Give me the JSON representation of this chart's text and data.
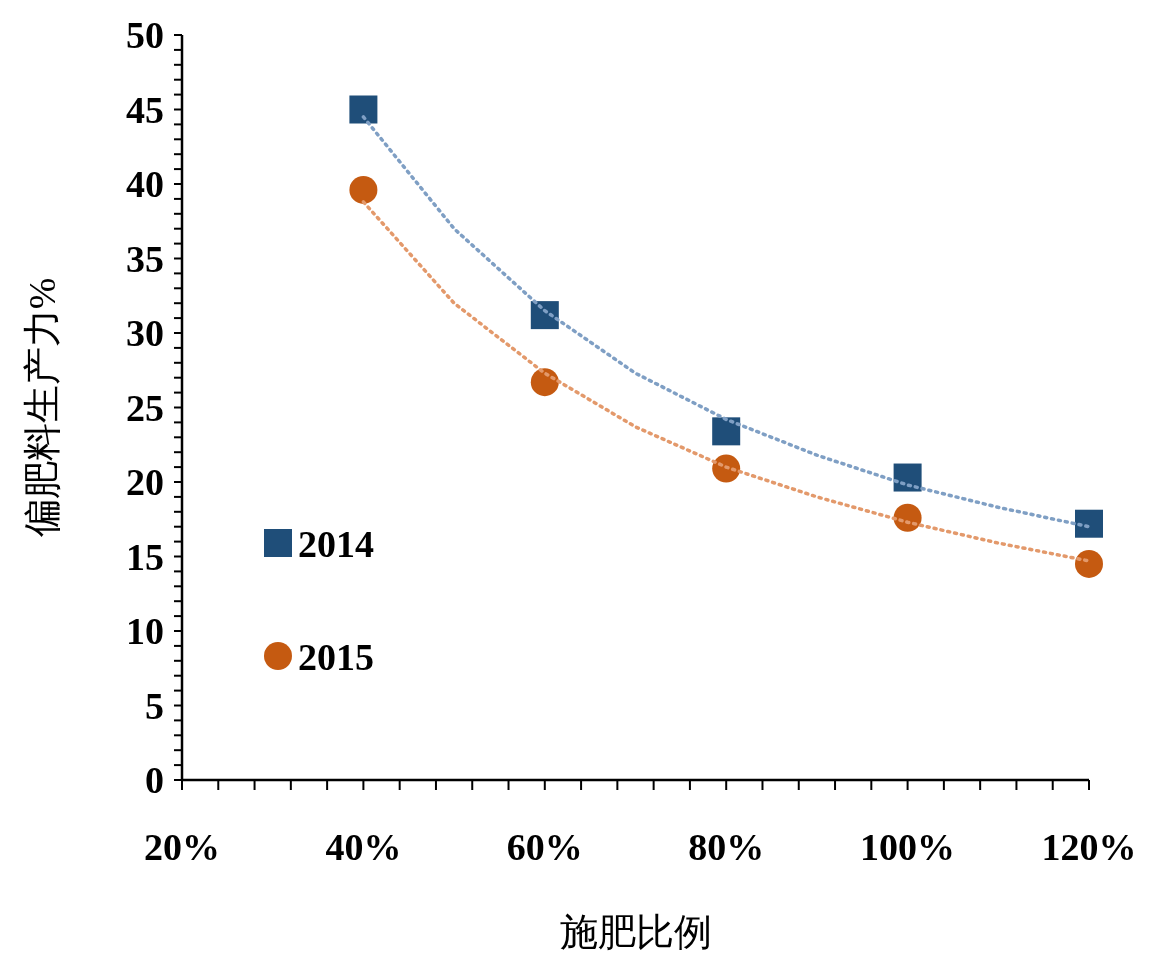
{
  "chart_data": {
    "type": "scatter",
    "xlabel": "施肥比例",
    "ylabel": "偏肥料生产力%",
    "xlim": [
      20,
      120
    ],
    "ylim": [
      0,
      50
    ],
    "xticks": [
      {
        "value": 20,
        "label": "20%"
      },
      {
        "value": 24,
        "label": null
      },
      {
        "value": 28,
        "label": null
      },
      {
        "value": 32,
        "label": null
      },
      {
        "value": 36,
        "label": null
      },
      {
        "value": 40,
        "label": "40%"
      },
      {
        "value": 44,
        "label": null
      },
      {
        "value": 48,
        "label": null
      },
      {
        "value": 52,
        "label": null
      },
      {
        "value": 56,
        "label": null
      },
      {
        "value": 60,
        "label": "60%"
      },
      {
        "value": 64,
        "label": null
      },
      {
        "value": 68,
        "label": null
      },
      {
        "value": 72,
        "label": null
      },
      {
        "value": 76,
        "label": null
      },
      {
        "value": 80,
        "label": "80%"
      },
      {
        "value": 84,
        "label": null
      },
      {
        "value": 88,
        "label": null
      },
      {
        "value": 92,
        "label": null
      },
      {
        "value": 96,
        "label": null
      },
      {
        "value": 100,
        "label": "100%"
      },
      {
        "value": 104,
        "label": null
      },
      {
        "value": 108,
        "label": null
      },
      {
        "value": 112,
        "label": null
      },
      {
        "value": 116,
        "label": null
      },
      {
        "value": 120,
        "label": "120%"
      }
    ],
    "yticks": [
      0,
      {
        "value": 1,
        "label": null
      },
      {
        "value": 2,
        "label": null
      },
      {
        "value": 3,
        "label": null
      },
      {
        "value": 4,
        "label": null
      },
      5,
      {
        "value": 6,
        "label": null
      },
      {
        "value": 7,
        "label": null
      },
      {
        "value": 8,
        "label": null
      },
      {
        "value": 9,
        "label": null
      },
      10,
      {
        "value": 11,
        "label": null
      },
      {
        "value": 12,
        "label": null
      },
      {
        "value": 13,
        "label": null
      },
      {
        "value": 14,
        "label": null
      },
      15,
      {
        "value": 16,
        "label": null
      },
      {
        "value": 17,
        "label": null
      },
      {
        "value": 18,
        "label": null
      },
      {
        "value": 19,
        "label": null
      },
      20,
      {
        "value": 21,
        "label": null
      },
      {
        "value": 22,
        "label": null
      },
      {
        "value": 23,
        "label": null
      },
      {
        "value": 24,
        "label": null
      },
      25,
      {
        "value": 26,
        "label": null
      },
      {
        "value": 27,
        "label": null
      },
      {
        "value": 28,
        "label": null
      },
      {
        "value": 29,
        "label": null
      },
      30,
      {
        "value": 31,
        "label": null
      },
      {
        "value": 32,
        "label": null
      },
      {
        "value": 33,
        "label": null
      },
      {
        "value": 34,
        "label": null
      },
      35,
      {
        "value": 36,
        "label": null
      },
      {
        "value": 37,
        "label": null
      },
      {
        "value": 38,
        "label": null
      },
      {
        "value": 39,
        "label": null
      },
      40,
      {
        "value": 41,
        "label": null
      },
      {
        "value": 42,
        "label": null
      },
      {
        "value": 43,
        "label": null
      },
      {
        "value": 44,
        "label": null
      },
      45,
      {
        "value": 46,
        "label": null
      },
      {
        "value": 47,
        "label": null
      },
      {
        "value": 48,
        "label": null
      },
      {
        "value": 49,
        "label": null
      },
      50
    ],
    "grid": false,
    "legend": "left",
    "series": [
      {
        "type": "line",
        "color": "#7f9fc4",
        "line_style": "dotted",
        "marker": "none",
        "x": [
          40,
          50,
          60,
          70,
          80,
          90,
          100,
          110,
          120
        ],
        "values": [
          44.5,
          37.0,
          31.5,
          27.3,
          24.2,
          21.8,
          19.8,
          18.3,
          17.0
        ]
      },
      {
        "type": "line",
        "color": "#e3996b",
        "line_style": "dotted",
        "marker": "none",
        "x": [
          40,
          50,
          60,
          70,
          80,
          90,
          100,
          110,
          120
        ],
        "values": [
          38.8,
          32.0,
          27.3,
          23.7,
          21.0,
          19.0,
          17.3,
          15.9,
          14.7
        ]
      },
      {
        "name": "2014",
        "marker": "square",
        "color": "#1f4e79",
        "x": [
          40,
          60,
          80,
          100,
          120
        ],
        "values": [
          45.0,
          31.2,
          23.4,
          20.3,
          17.2
        ]
      },
      {
        "name": "2015",
        "marker": "circle",
        "color": "#c55a11",
        "x": [
          40,
          60,
          80,
          100,
          120
        ],
        "values": [
          39.6,
          26.7,
          20.9,
          17.6,
          14.5
        ]
      }
    ]
  }
}
